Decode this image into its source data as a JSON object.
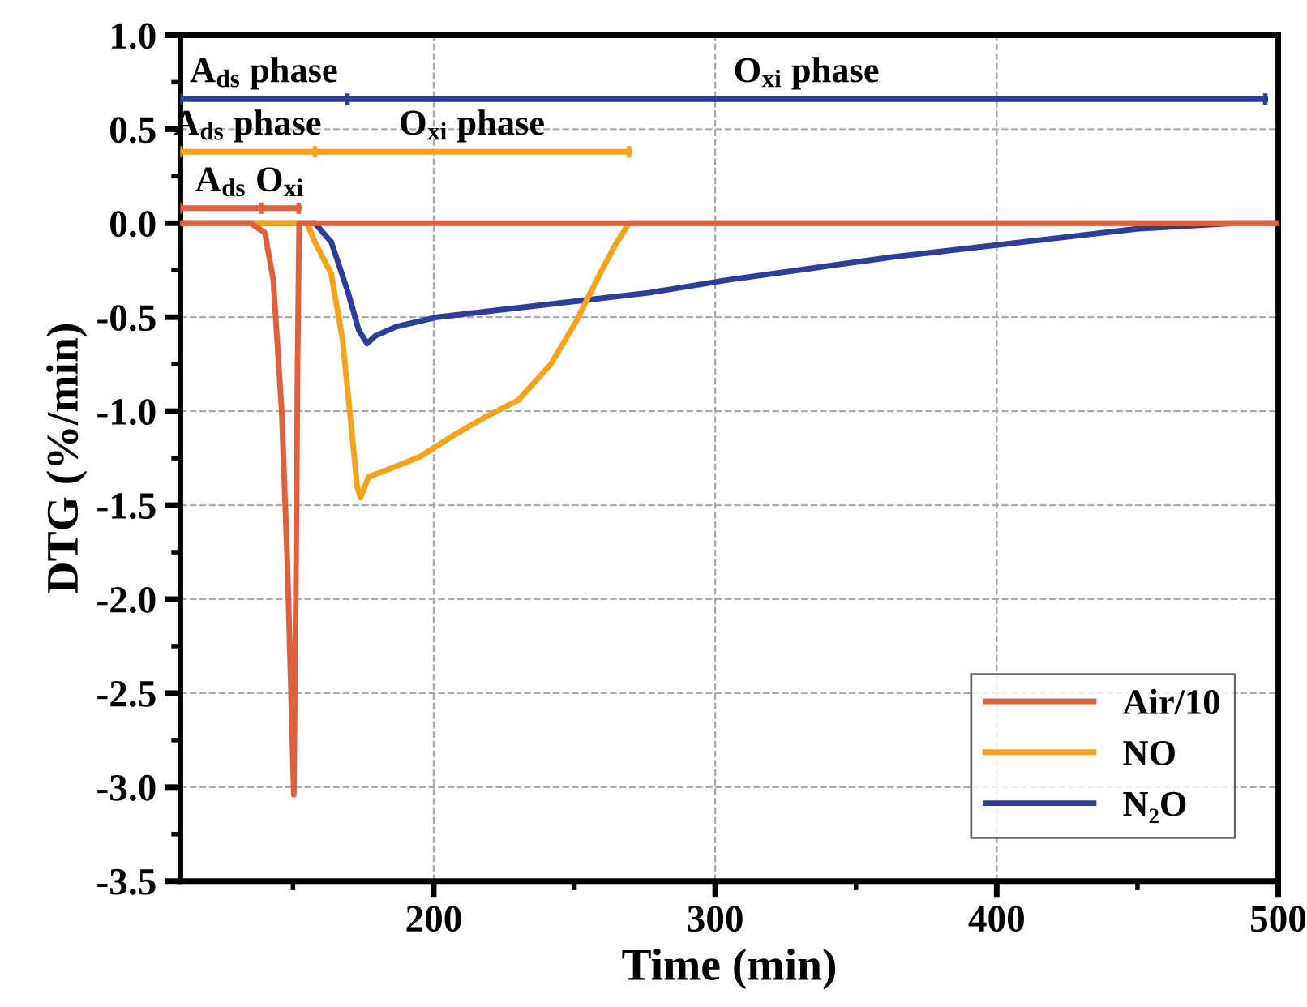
{
  "chart_data": {
    "type": "line",
    "xlabel": "Time (min)",
    "ylabel": "DTG (%/min)",
    "xlim": [
      110,
      500
    ],
    "xticks": [
      200,
      300,
      400,
      500
    ],
    "ylim": [
      -3.5,
      1.0
    ],
    "yticks": [
      {
        "value": 1.0,
        "label": "1.0"
      },
      {
        "value": 0.5,
        "label": "0.5"
      },
      {
        "value": 0.0,
        "label": "0.0"
      },
      {
        "value": -0.5,
        "label": "-0.5"
      },
      {
        "value": -1.0,
        "label": "-1.0"
      },
      {
        "value": -1.5,
        "label": "-1.5"
      },
      {
        "value": -2.0,
        "label": "-2.0"
      },
      {
        "value": -2.5,
        "label": "-2.5"
      },
      {
        "value": -3.0,
        "label": "-3.0"
      },
      {
        "value": -3.5,
        "label": "-3.5"
      }
    ],
    "grid": true,
    "legend": "bottom right",
    "line_style": "solid",
    "marker": "none",
    "series": [
      {
        "name": "Air/10",
        "color": "#e0603e",
        "x": [
          110,
          135,
          140,
          143,
          146,
          148,
          149.5,
          150.3,
          151,
          151.6,
          152.2,
          500
        ],
        "values": [
          0,
          0,
          -0.05,
          -0.3,
          -1.0,
          -1.8,
          -2.6,
          -3.04,
          -2.0,
          -0.8,
          0,
          0
        ]
      },
      {
        "name": "NO",
        "color": "#f5a31a",
        "x": [
          110,
          155,
          157.8,
          163.6,
          167.6,
          170.5,
          172.8,
          174.0,
          176.9,
          183.8,
          195.4,
          206.9,
          218.5,
          230.1,
          241.6,
          250.3,
          259.0,
          264.7,
          269.4,
          500
        ],
        "values": [
          0,
          0,
          -0.1,
          -0.27,
          -0.62,
          -1.05,
          -1.4,
          -1.46,
          -1.35,
          -1.31,
          -1.24,
          -1.13,
          -1.03,
          -0.94,
          -0.75,
          -0.53,
          -0.27,
          -0.11,
          0,
          0
        ]
      },
      {
        "name": "N₂O",
        "color": "#2b3f9a",
        "x": [
          110,
          157.8,
          163.6,
          169.4,
          173.4,
          176.3,
          179.2,
          186.7,
          201.2,
          218.5,
          247.4,
          276.3,
          305.2,
          334.1,
          363,
          391.9,
          420.8,
          449.7,
          484.4,
          500
        ],
        "values": [
          0,
          0,
          -0.1,
          -0.36,
          -0.57,
          -0.64,
          -0.6,
          -0.55,
          -0.5,
          -0.47,
          -0.42,
          -0.37,
          -0.3,
          -0.24,
          -0.18,
          -0.13,
          -0.08,
          -0.03,
          0,
          0
        ]
      },
      {
        "color": "#2b3f9a",
        "x": [
          110,
          169.4,
          495.4
        ],
        "values": [
          0.66,
          0.66,
          0.66
        ],
        "errors": [
          0.03,
          0.03,
          0.03
        ]
      },
      {
        "color": "#f5a31a",
        "x": [
          110,
          157.8,
          269.4
        ],
        "values": [
          0.38,
          0.38,
          0.38
        ],
        "errors": [
          0.03,
          0.03,
          0.03
        ]
      },
      {
        "color": "#e0603e",
        "x": [
          110,
          138.7,
          152
        ],
        "values": [
          0.08,
          0.08,
          0.08
        ],
        "errors": [
          0.03,
          0.03,
          0.03
        ]
      }
    ],
    "annotations": [
      "A$_{ds}$ phase",
      "O$_{xi}$ phase",
      "A$_{ds}$ phase",
      "O$_{xi}$ phase",
      "A$_{ds}$",
      "O$_{xi}$"
    ]
  }
}
